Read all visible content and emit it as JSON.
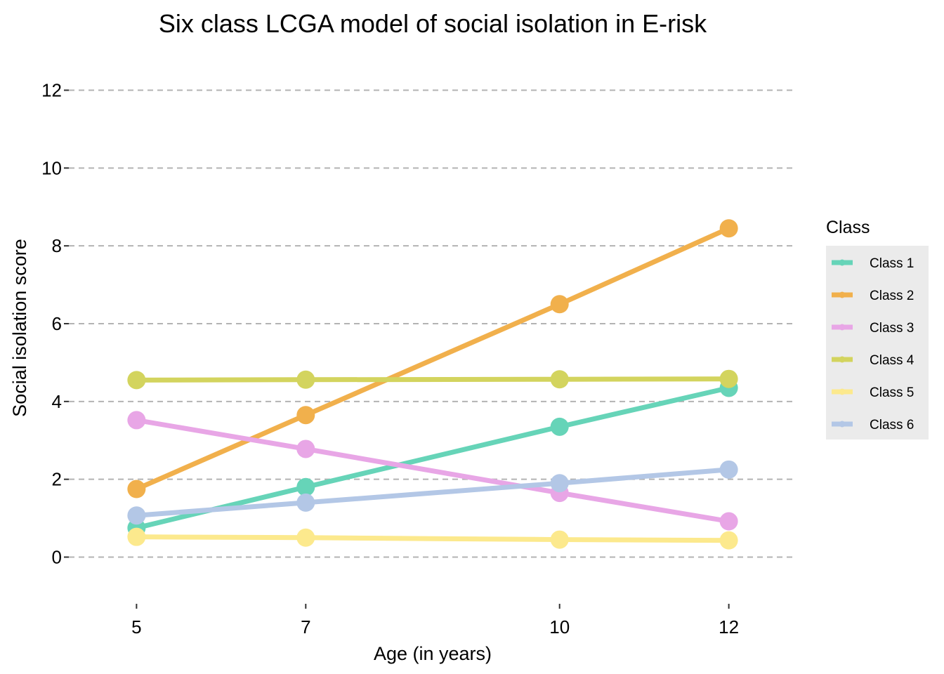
{
  "chart_data": {
    "type": "line",
    "title": "Six class LCGA model of social isolation in E-risk",
    "xlabel": "Age (in years)",
    "ylabel": "Social isolation score",
    "x": [
      5,
      7,
      10,
      12
    ],
    "x_ticks": [
      "5",
      "7",
      "10",
      "12"
    ],
    "xlim": [
      4.2,
      12.8
    ],
    "ylim": [
      -1.2,
      13.2
    ],
    "y_ticks": [
      0,
      2,
      4,
      6,
      8,
      10,
      12
    ],
    "y_tick_labels": [
      "0",
      "2",
      "4",
      "6",
      "8",
      "10",
      "12"
    ],
    "grid": "horizontal dashed",
    "legend": {
      "title": "Class",
      "placement": "right"
    },
    "series": [
      {
        "name": "Class 1",
        "color": "#66d4b8",
        "values": [
          0.75,
          1.8,
          3.35,
          4.35
        ]
      },
      {
        "name": "Class 2",
        "color": "#f1b04c",
        "values": [
          1.75,
          3.65,
          6.5,
          8.45
        ]
      },
      {
        "name": "Class 3",
        "color": "#e8a6e6",
        "values": [
          3.52,
          2.78,
          1.65,
          0.92
        ]
      },
      {
        "name": "Class 4",
        "color": "#d3d45e",
        "values": [
          4.55,
          4.56,
          4.57,
          4.58
        ]
      },
      {
        "name": "Class 5",
        "color": "#fce98d",
        "values": [
          0.52,
          0.5,
          0.45,
          0.43
        ]
      },
      {
        "name": "Class 6",
        "color": "#b3c7e6",
        "values": [
          1.07,
          1.4,
          1.9,
          2.25
        ]
      }
    ]
  }
}
